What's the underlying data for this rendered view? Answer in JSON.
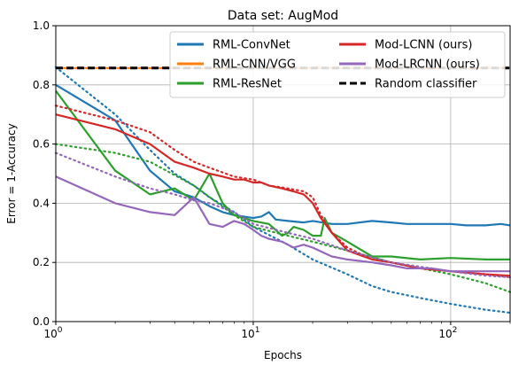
{
  "chart_data": {
    "type": "line",
    "title": "Data set: AugMod",
    "xlabel": "Epochs",
    "ylabel": "Error = 1-Accuracy",
    "x_scale": "log",
    "xlim": [
      1,
      200
    ],
    "ylim": [
      0.0,
      1.0
    ],
    "x_ticks": [
      {
        "value": 1,
        "base": "10",
        "exp": "0"
      },
      {
        "value": 10,
        "base": "10",
        "exp": "1"
      },
      {
        "value": 100,
        "base": "10",
        "exp": "2"
      }
    ],
    "y_ticks": [
      {
        "value": 0.0,
        "label": "0.0"
      },
      {
        "value": 0.2,
        "label": "0.2"
      },
      {
        "value": 0.4,
        "label": "0.4"
      },
      {
        "value": 0.6,
        "label": "0.6"
      },
      {
        "value": 0.8,
        "label": "0.8"
      },
      {
        "value": 1.0,
        "label": "1.0"
      }
    ],
    "grid": true,
    "legend_position": "top-right",
    "legend": [
      {
        "name": "RML-ConvNet",
        "color": "#1f77b4",
        "dash": "solid"
      },
      {
        "name": "RML-CNN/VGG",
        "color": "#ff7f0e",
        "dash": "solid"
      },
      {
        "name": "RML-ResNet",
        "color": "#2ca02c",
        "dash": "solid"
      },
      {
        "name": "Mod-LCNN (ours)",
        "color": "#d62728",
        "dash": "solid"
      },
      {
        "name": "Mod-LRCNN (ours)",
        "color": "#9467bd",
        "dash": "solid"
      },
      {
        "name": "Random classifier",
        "color": "#000000",
        "dash": "dashed"
      }
    ],
    "series": [
      {
        "color": "#ff7f0e",
        "style": "solid",
        "x": [
          1,
          200
        ],
        "y": [
          0.857,
          0.857
        ]
      },
      {
        "color": "#1f77b4",
        "style": "solid",
        "x": [
          1,
          2,
          3,
          4,
          5,
          6,
          7,
          8,
          10,
          11,
          12,
          13,
          15,
          18,
          20,
          25,
          30,
          40,
          50,
          60,
          80,
          100,
          120,
          150,
          180,
          200
        ],
        "y": [
          0.8,
          0.68,
          0.51,
          0.44,
          0.42,
          0.39,
          0.37,
          0.36,
          0.35,
          0.355,
          0.37,
          0.345,
          0.34,
          0.335,
          0.34,
          0.33,
          0.33,
          0.34,
          0.335,
          0.33,
          0.33,
          0.33,
          0.325,
          0.325,
          0.33,
          0.325
        ]
      },
      {
        "color": "#1f77b4",
        "style": "dotted",
        "x": [
          1,
          2,
          3,
          4,
          5,
          6,
          8,
          10,
          15,
          20,
          30,
          40,
          50,
          70,
          100,
          150,
          200
        ],
        "y": [
          0.86,
          0.7,
          0.58,
          0.5,
          0.46,
          0.42,
          0.37,
          0.32,
          0.26,
          0.21,
          0.16,
          0.12,
          0.1,
          0.08,
          0.06,
          0.04,
          0.03
        ]
      },
      {
        "color": "#2ca02c",
        "style": "solid",
        "x": [
          1,
          2,
          3,
          4,
          5,
          6,
          7,
          8,
          10,
          12,
          14,
          15,
          16,
          18,
          20,
          22,
          23,
          25,
          30,
          40,
          50,
          70,
          100,
          150,
          200
        ],
        "y": [
          0.78,
          0.51,
          0.43,
          0.45,
          0.41,
          0.5,
          0.4,
          0.36,
          0.34,
          0.33,
          0.29,
          0.3,
          0.32,
          0.31,
          0.29,
          0.29,
          0.35,
          0.3,
          0.27,
          0.22,
          0.22,
          0.21,
          0.215,
          0.21,
          0.21
        ]
      },
      {
        "color": "#2ca02c",
        "style": "dotted",
        "x": [
          1,
          2,
          3,
          5,
          8,
          10,
          15,
          20,
          30,
          50,
          100,
          150,
          200
        ],
        "y": [
          0.6,
          0.57,
          0.54,
          0.46,
          0.36,
          0.32,
          0.29,
          0.27,
          0.24,
          0.2,
          0.16,
          0.13,
          0.1
        ]
      },
      {
        "color": "#d62728",
        "style": "solid",
        "x": [
          1,
          2,
          3,
          4,
          5,
          6,
          7,
          8,
          9,
          10,
          11,
          12,
          14,
          16,
          18,
          20,
          22,
          25,
          30,
          40,
          50,
          70,
          100,
          150,
          200
        ],
        "y": [
          0.7,
          0.65,
          0.6,
          0.54,
          0.52,
          0.5,
          0.49,
          0.48,
          0.48,
          0.47,
          0.47,
          0.46,
          0.45,
          0.44,
          0.43,
          0.4,
          0.35,
          0.3,
          0.24,
          0.21,
          0.2,
          0.18,
          0.17,
          0.16,
          0.155
        ]
      },
      {
        "color": "#d62728",
        "style": "dotted",
        "x": [
          1,
          2,
          3,
          4,
          5,
          6,
          8,
          10,
          12,
          15,
          18,
          20,
          22,
          25,
          30,
          40,
          50,
          70,
          100,
          150,
          200
        ],
        "y": [
          0.73,
          0.68,
          0.64,
          0.58,
          0.54,
          0.52,
          0.49,
          0.48,
          0.46,
          0.45,
          0.44,
          0.42,
          0.36,
          0.3,
          0.25,
          0.21,
          0.2,
          0.18,
          0.17,
          0.16,
          0.15
        ]
      },
      {
        "color": "#9467bd",
        "style": "solid",
        "x": [
          1,
          2,
          3,
          4,
          5,
          6,
          7,
          8,
          9,
          10,
          11,
          12,
          14,
          16,
          18,
          20,
          25,
          30,
          40,
          50,
          60,
          80,
          100,
          150,
          200
        ],
        "y": [
          0.49,
          0.4,
          0.37,
          0.36,
          0.42,
          0.33,
          0.32,
          0.34,
          0.33,
          0.31,
          0.29,
          0.28,
          0.27,
          0.25,
          0.26,
          0.25,
          0.22,
          0.21,
          0.2,
          0.19,
          0.18,
          0.18,
          0.17,
          0.17,
          0.17
        ]
      },
      {
        "color": "#9467bd",
        "style": "dotted",
        "x": [
          1,
          2,
          3,
          4,
          5,
          6,
          8,
          10,
          15,
          20,
          30,
          50,
          100,
          150,
          200
        ],
        "y": [
          0.57,
          0.49,
          0.45,
          0.43,
          0.41,
          0.4,
          0.37,
          0.33,
          0.3,
          0.28,
          0.24,
          0.2,
          0.17,
          0.155,
          0.15
        ]
      },
      {
        "color": "#000000",
        "style": "dashed",
        "x": [
          1,
          200
        ],
        "y": [
          0.857,
          0.857
        ]
      }
    ]
  }
}
